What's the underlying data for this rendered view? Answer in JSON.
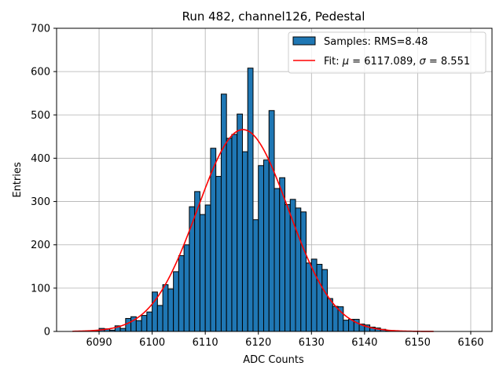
{
  "chart_data": {
    "type": "bar",
    "title": "Run 482, channel126, Pedestal",
    "xlabel": "ADC Counts",
    "ylabel": "Entries",
    "xlim": [
      6082,
      6164
    ],
    "ylim": [
      0,
      700
    ],
    "xticks": [
      6090,
      6100,
      6110,
      6120,
      6130,
      6140,
      6150,
      6160
    ],
    "yticks": [
      0,
      100,
      200,
      300,
      400,
      500,
      600,
      700
    ],
    "grid": true,
    "legend_position": "top-right",
    "colors": {
      "bars": "#1f77b4",
      "bar_edge": "#000000",
      "fit": "#ff0000"
    },
    "series": [
      {
        "name": "Samples: RMS=8.48",
        "type": "histogram",
        "bin_width": 1,
        "bins_left": [
          6089,
          6090,
          6091,
          6092,
          6093,
          6094,
          6095,
          6096,
          6097,
          6098,
          6099,
          6100,
          6101,
          6102,
          6103,
          6104,
          6105,
          6106,
          6107,
          6108,
          6109,
          6110,
          6111,
          6112,
          6113,
          6114,
          6115,
          6116,
          6117,
          6118,
          6119,
          6120,
          6121,
          6122,
          6123,
          6124,
          6125,
          6126,
          6127,
          6128,
          6129,
          6130,
          6131,
          6132,
          6133,
          6134,
          6135,
          6136,
          6137,
          6138,
          6139,
          6140,
          6141,
          6142,
          6143,
          6144
        ],
        "values": [
          2,
          7,
          6,
          3,
          13,
          7,
          30,
          34,
          25,
          37,
          45,
          91,
          60,
          108,
          98,
          138,
          175,
          200,
          288,
          323,
          270,
          292,
          423,
          358,
          548,
          446,
          455,
          502,
          415,
          608,
          258,
          383,
          396,
          510,
          330,
          355,
          293,
          305,
          285,
          276,
          158,
          167,
          155,
          143,
          76,
          58,
          57,
          26,
          28,
          28,
          17,
          15,
          10,
          8,
          5,
          1
        ]
      },
      {
        "name": "Fit: μ = 6117.089, σ = 8.551",
        "type": "gaussian",
        "mu": 6117.089,
        "sigma": 8.551,
        "amplitude": 466,
        "x_range": [
          6085,
          6153
        ]
      }
    ]
  },
  "legend": {
    "samples_label": "Samples: RMS=8.48",
    "fit_prefix": "Fit: ",
    "fit_mu_symbol": "μ",
    "fit_mu_value": " = 6117.089, ",
    "fit_sigma_symbol": "σ",
    "fit_sigma_value": " = 8.551"
  }
}
